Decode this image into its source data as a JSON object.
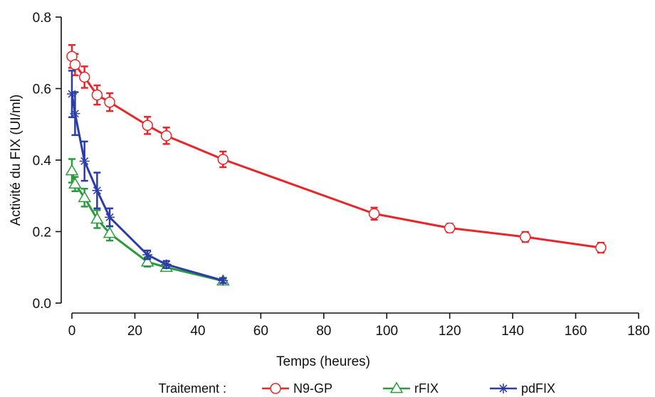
{
  "chart_data": {
    "type": "line",
    "title": "",
    "xlabel": "Temps (heures)",
    "ylabel": "Activité du FIX (UI/ml)",
    "xlim": [
      0,
      180
    ],
    "ylim": [
      0,
      0.8
    ],
    "xticks": [
      "0",
      "20",
      "40",
      "60",
      "80",
      "100",
      "120",
      "140",
      "160",
      "180"
    ],
    "yticks": [
      "0.0",
      "0.2",
      "0.4",
      "0.6",
      "0.8"
    ],
    "grid": false,
    "legend_title": "Traitement :",
    "legend_position": "bottom",
    "series": [
      {
        "name": "N9-GP",
        "color": "#e8262a",
        "marker": "circle",
        "x": [
          0,
          1,
          4,
          8,
          12,
          24,
          30,
          48,
          96,
          120,
          144,
          168
        ],
        "y": [
          0.69,
          0.667,
          0.632,
          0.582,
          0.562,
          0.497,
          0.468,
          0.402,
          0.25,
          0.21,
          0.185,
          0.155
        ],
        "err": [
          0.032,
          0.03,
          0.03,
          0.027,
          0.025,
          0.024,
          0.023,
          0.022,
          0.017,
          0.012,
          0.014,
          0.014
        ]
      },
      {
        "name": "rFIX",
        "color": "#2a9b3a",
        "marker": "triangle",
        "x": [
          0,
          1,
          4,
          8,
          12,
          24,
          30,
          48
        ],
        "y": [
          0.37,
          0.333,
          0.295,
          0.235,
          0.195,
          0.115,
          0.1,
          0.062
        ],
        "err": [
          0.033,
          0.02,
          0.025,
          0.025,
          0.02,
          0.013,
          0.009,
          0.007
        ]
      },
      {
        "name": "pdFIX",
        "color": "#2b3da8",
        "marker": "asterisk",
        "x": [
          0,
          1,
          4,
          8,
          12,
          24,
          30,
          48
        ],
        "y": [
          0.585,
          0.53,
          0.397,
          0.315,
          0.24,
          0.135,
          0.108,
          0.063
        ],
        "err": [
          0.065,
          0.06,
          0.055,
          0.05,
          0.025,
          0.012,
          0.01,
          0.007
        ]
      }
    ]
  }
}
